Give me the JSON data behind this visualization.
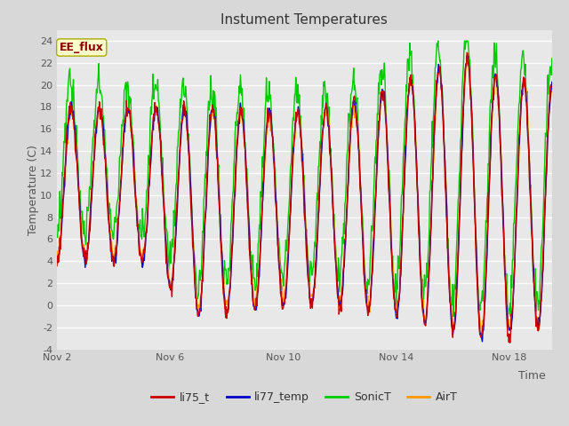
{
  "title": "Instument Temperatures",
  "xlabel": "Time",
  "ylabel": "Temperature (C)",
  "ylim": [
    -4,
    25
  ],
  "yticks": [
    -4,
    -2,
    0,
    2,
    4,
    6,
    8,
    10,
    12,
    14,
    16,
    18,
    20,
    22,
    24
  ],
  "xlim_days": [
    0,
    17.5
  ],
  "xtick_positions": [
    0,
    4,
    8,
    12,
    16
  ],
  "xtick_labels": [
    "Nov 2",
    "Nov 6",
    "Nov 10",
    "Nov 14",
    "Nov 18"
  ],
  "series": [
    "li75_t",
    "li77_temp",
    "SonicT",
    "AirT"
  ],
  "colors": [
    "#cc0000",
    "#0000cc",
    "#00cc00",
    "#ff9900"
  ],
  "annotation_text": "EE_flux",
  "plot_bg_color": "#e8e8e8",
  "fig_bg_color": "#d8d8d8",
  "grid_color": "#ffffff",
  "title_fontsize": 11,
  "label_fontsize": 9,
  "tick_fontsize": 8,
  "legend_fontsize": 9
}
